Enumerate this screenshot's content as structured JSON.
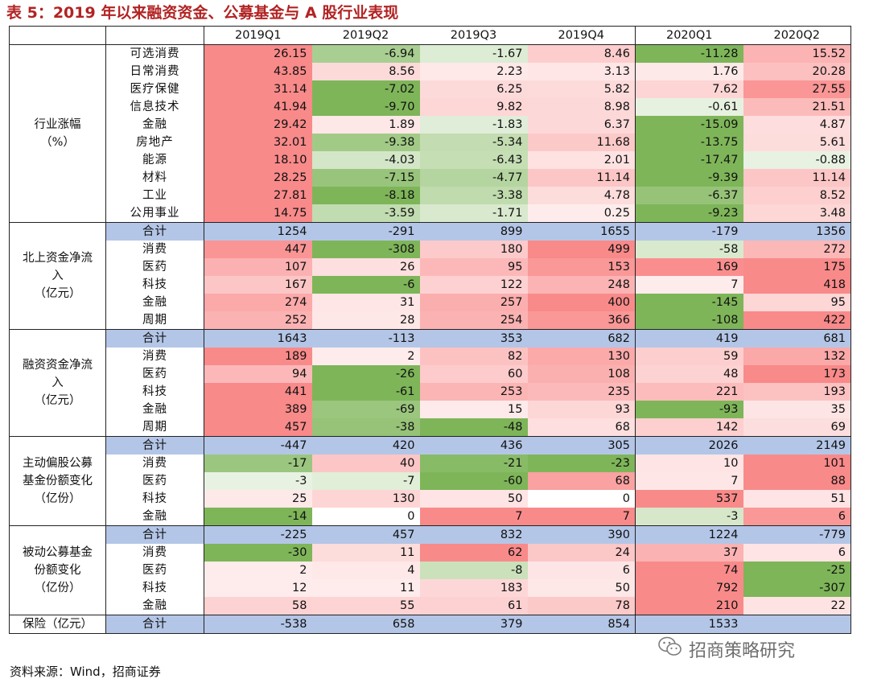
{
  "title": "表 5：2019 年以来融资资金、公募基金与 A 股行业表现",
  "headers": [
    "2019Q1",
    "2019Q2",
    "2019Q3",
    "2019Q4",
    "2020Q1",
    "2020Q2"
  ],
  "colors": {
    "title": "#b22323",
    "total_row": "#b4c6e7",
    "positive": "#f86d6d",
    "negative": "#70ad47"
  },
  "groups": [
    {
      "label": "行业涨幅\n（%）",
      "rows": [
        {
          "label": "可选消费",
          "values": [
            "26.15",
            "-6.94",
            "-1.67",
            "8.46",
            "-11.28",
            "15.52"
          ]
        },
        {
          "label": "日常消费",
          "values": [
            "43.85",
            "8.56",
            "2.23",
            "3.13",
            "1.76",
            "20.28"
          ]
        },
        {
          "label": "医疗保健",
          "values": [
            "31.14",
            "-7.02",
            "6.25",
            "5.82",
            "7.62",
            "27.55"
          ]
        },
        {
          "label": "信息技术",
          "values": [
            "41.94",
            "-9.70",
            "9.82",
            "8.98",
            "-0.61",
            "21.51"
          ]
        },
        {
          "label": "金融",
          "values": [
            "29.42",
            "1.89",
            "-1.83",
            "6.37",
            "-15.09",
            "4.87"
          ]
        },
        {
          "label": "房地产",
          "values": [
            "32.01",
            "-9.38",
            "-5.34",
            "11.68",
            "-13.75",
            "5.61"
          ]
        },
        {
          "label": "能源",
          "values": [
            "18.10",
            "-4.03",
            "-6.43",
            "2.01",
            "-17.47",
            "-0.88"
          ]
        },
        {
          "label": "材料",
          "values": [
            "28.25",
            "-7.15",
            "-4.77",
            "11.14",
            "-9.39",
            "11.14"
          ]
        },
        {
          "label": "工业",
          "values": [
            "27.81",
            "-8.18",
            "-3.38",
            "4.78",
            "-6.37",
            "8.52"
          ]
        },
        {
          "label": "公用事业",
          "values": [
            "14.75",
            "-3.59",
            "-1.71",
            "0.25",
            "-9.23",
            "3.48"
          ]
        }
      ]
    },
    {
      "label": "北上资金净流\n入\n（亿元）",
      "rows": [
        {
          "label": "合计",
          "total": true,
          "values": [
            "1254",
            "-291",
            "899",
            "1655",
            "-179",
            "1356"
          ]
        },
        {
          "label": "消费",
          "values": [
            "447",
            "-308",
            "180",
            "499",
            "-58",
            "272"
          ]
        },
        {
          "label": "医药",
          "values": [
            "107",
            "26",
            "95",
            "153",
            "169",
            "175"
          ]
        },
        {
          "label": "科技",
          "values": [
            "167",
            "-6",
            "122",
            "248",
            "7",
            "418"
          ]
        },
        {
          "label": "金融",
          "values": [
            "274",
            "31",
            "257",
            "400",
            "-145",
            "95"
          ]
        },
        {
          "label": "周期",
          "values": [
            "252",
            "28",
            "254",
            "366",
            "-108",
            "422"
          ]
        }
      ]
    },
    {
      "label": "融资资金净流\n入\n（亿元）",
      "rows": [
        {
          "label": "合计",
          "total": true,
          "values": [
            "1643",
            "-113",
            "353",
            "682",
            "419",
            "681"
          ]
        },
        {
          "label": "消费",
          "values": [
            "189",
            "2",
            "82",
            "130",
            "59",
            "132"
          ]
        },
        {
          "label": "医药",
          "values": [
            "94",
            "-26",
            "60",
            "108",
            "48",
            "173"
          ]
        },
        {
          "label": "科技",
          "values": [
            "441",
            "-61",
            "253",
            "235",
            "221",
            "193"
          ]
        },
        {
          "label": "金融",
          "values": [
            "389",
            "-69",
            "15",
            "93",
            "-93",
            "35"
          ]
        },
        {
          "label": "周期",
          "values": [
            "457",
            "-38",
            "-48",
            "68",
            "142",
            "69"
          ]
        }
      ]
    },
    {
      "label": "主动偏股公募\n基金份额变化\n（亿份）",
      "rows": [
        {
          "label": "合计",
          "total": true,
          "values": [
            "-447",
            "420",
            "436",
            "305",
            "2026",
            "2149"
          ]
        },
        {
          "label": "消费",
          "values": [
            "-17",
            "40",
            "-21",
            "-23",
            "10",
            "101"
          ]
        },
        {
          "label": "医药",
          "values": [
            "-3",
            "-7",
            "-60",
            "68",
            "7",
            "88"
          ]
        },
        {
          "label": "科技",
          "values": [
            "25",
            "130",
            "50",
            "0",
            "537",
            "51"
          ]
        },
        {
          "label": "金融",
          "values": [
            "-14",
            "0",
            "7",
            "7",
            "-3",
            "6"
          ]
        }
      ]
    },
    {
      "label": "被动公募基金\n份额变化\n（亿份）",
      "rows": [
        {
          "label": "合计",
          "total": true,
          "values": [
            "-225",
            "457",
            "832",
            "390",
            "1224",
            "-779"
          ]
        },
        {
          "label": "消费",
          "values": [
            "-30",
            "11",
            "62",
            "24",
            "37",
            "6"
          ]
        },
        {
          "label": "医药",
          "values": [
            "2",
            "4",
            "-8",
            "6",
            "74",
            "-25"
          ]
        },
        {
          "label": "科技",
          "values": [
            "12",
            "11",
            "183",
            "50",
            "792",
            "-307"
          ]
        },
        {
          "label": "金融",
          "values": [
            "58",
            "55",
            "61",
            "78",
            "210",
            "22"
          ]
        }
      ]
    },
    {
      "label": "保险（亿元）",
      "rows": [
        {
          "label": "合计",
          "total": true,
          "values": [
            "-538",
            "658",
            "379",
            "854",
            "1533",
            ""
          ]
        }
      ]
    }
  ],
  "source": "资料来源：Wind，招商证券",
  "watermark": "招商策略研究",
  "watermark_icon": "wechat-icon"
}
